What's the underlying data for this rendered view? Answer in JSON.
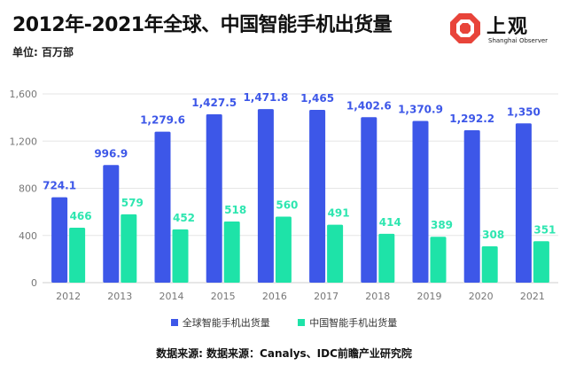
{
  "header": {
    "title": "2012年-2021年全球、中国智能手机出货量",
    "unit": "单位: 百万部"
  },
  "logo": {
    "brand": "上观",
    "subtitle": "Shanghai Observer",
    "color": "#e8443a"
  },
  "source": "数据来源: 数据来源：Canalys、IDC前瞻产业研究院",
  "colors": {
    "global": "#3d57e8",
    "china": "#1ee3a8",
    "global_label": "#3d57e8",
    "china_label": "#2ee6b0"
  },
  "chart_data": {
    "type": "bar",
    "title": "2012年-2021年全球、中国智能手机出货量",
    "xlabel": "",
    "ylabel": "单位: 百万部",
    "ylim": [
      0,
      1600
    ],
    "yticks": [
      0,
      400,
      800,
      1200,
      1600
    ],
    "ytick_labels": [
      "0",
      "400",
      "800",
      "1,200",
      "1,600"
    ],
    "grid": true,
    "legend": "bottom-center",
    "categories": [
      "2012",
      "2013",
      "2014",
      "2015",
      "2016",
      "2017",
      "2018",
      "2019",
      "2020",
      "2021"
    ],
    "series": [
      {
        "name": "全球智能手机出货量",
        "values": [
          724.1,
          996.9,
          1279.6,
          1427.5,
          1471.8,
          1465,
          1402.6,
          1370.9,
          1292.2,
          1350
        ],
        "labels": [
          "724.1",
          "996.9",
          "1,279.6",
          "1,427.5",
          "1,471.8",
          "1,465",
          "1,402.6",
          "1,370.9",
          "1,292.2",
          "1,350"
        ]
      },
      {
        "name": "中国智能手机出货量",
        "values": [
          466,
          579,
          452,
          518,
          560,
          491,
          414,
          389,
          308,
          351
        ],
        "labels": [
          "466",
          "579",
          "452",
          "518",
          "560",
          "491",
          "414",
          "389",
          "308",
          "351"
        ]
      }
    ]
  }
}
